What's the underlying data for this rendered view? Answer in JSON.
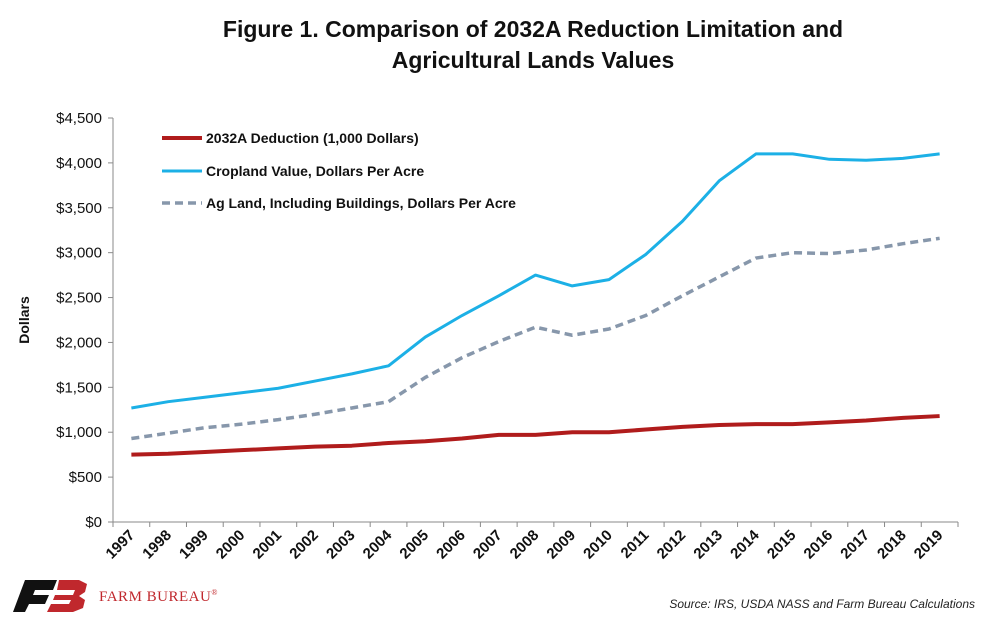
{
  "title_line1": "Figure 1. Comparison of 2032A Reduction Limitation and",
  "title_line2": "Agricultural Lands Values",
  "source": "Source: IRS, USDA NASS and Farm Bureau Calculations",
  "logo": {
    "text": "FARM BUREAU",
    "mark": "®"
  },
  "chart_data": {
    "type": "line",
    "ylabel": "Dollars",
    "xlabel": "",
    "ylim": [
      0,
      4500
    ],
    "ytick_step": 500,
    "ytick_labels": [
      "$0",
      "$500",
      "$1,000",
      "$1,500",
      "$2,000",
      "$2,500",
      "$3,000",
      "$3,500",
      "$4,000",
      "$4,500"
    ],
    "grid": false,
    "legend_position": "top-left",
    "categories": [
      "1997",
      "1998",
      "1999",
      "2000",
      "2001",
      "2002",
      "2003",
      "2004",
      "2005",
      "2006",
      "2007",
      "2008",
      "2009",
      "2010",
      "2011",
      "2012",
      "2013",
      "2014",
      "2015",
      "2016",
      "2017",
      "2018",
      "2019"
    ],
    "series": [
      {
        "name": "2032A Deduction (1,000 Dollars)",
        "color": "#b01c1c",
        "style": "solid",
        "values": [
          750,
          760,
          780,
          800,
          820,
          840,
          850,
          880,
          900,
          930,
          970,
          970,
          1000,
          1000,
          1030,
          1060,
          1080,
          1090,
          1090,
          1110,
          1130,
          1160,
          1180
        ]
      },
      {
        "name": "Cropland Value, Dollars Per Acre",
        "color": "#1cb0e6",
        "style": "solid",
        "values": [
          1270,
          1340,
          1390,
          1440,
          1490,
          1570,
          1650,
          1740,
          2060,
          2300,
          2520,
          2750,
          2630,
          2700,
          2980,
          3350,
          3800,
          4100,
          4100,
          4040,
          4030,
          4050,
          4100
        ]
      },
      {
        "name": "Ag Land, Including Buildings, Dollars Per Acre",
        "color": "#8797ab",
        "style": "dashed",
        "values": [
          930,
          990,
          1050,
          1090,
          1140,
          1200,
          1270,
          1340,
          1610,
          1830,
          2010,
          2170,
          2080,
          2150,
          2300,
          2520,
          2730,
          2940,
          3000,
          2990,
          3030,
          3100,
          3160
        ]
      }
    ]
  }
}
